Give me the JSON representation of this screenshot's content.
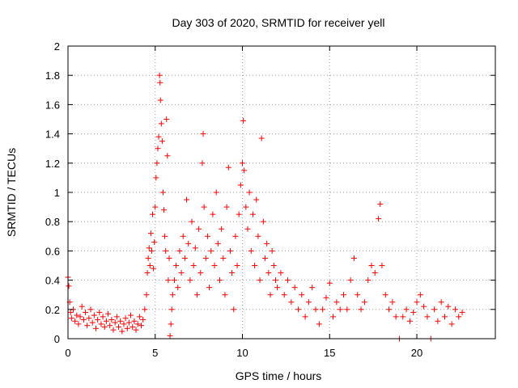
{
  "chart_data": {
    "type": "scatter",
    "title": "Day 303 of 2020, SRMTID for receiver yell",
    "xlabel": "GPS time / hours",
    "ylabel": "SRMTID / TECUs",
    "xlim": [
      0,
      24.5
    ],
    "ylim": [
      0,
      2
    ],
    "xticks": [
      0,
      5,
      10,
      15,
      20
    ],
    "yticks": [
      0,
      0.2,
      0.4,
      0.6,
      0.8,
      1,
      1.2,
      1.4,
      1.6,
      1.8,
      2
    ],
    "xtick_labels": [
      "0",
      "5",
      "10",
      "15",
      "20"
    ],
    "ytick_labels": [
      "0",
      "0.2",
      "0.4",
      "0.6",
      "0.8",
      "1",
      "1.2",
      "1.4",
      "1.6",
      "1.8",
      "2"
    ],
    "grid": true,
    "marker": "+",
    "color": "#ff0000",
    "series": [
      {
        "name": "SRMTID",
        "points": [
          [
            0.0,
            0.42
          ],
          [
            0.05,
            0.36
          ],
          [
            0.1,
            0.25
          ],
          [
            0.15,
            0.18
          ],
          [
            0.2,
            0.14
          ],
          [
            0.3,
            0.2
          ],
          [
            0.4,
            0.12
          ],
          [
            0.5,
            0.16
          ],
          [
            0.6,
            0.1
          ],
          [
            0.7,
            0.15
          ],
          [
            0.8,
            0.22
          ],
          [
            0.9,
            0.13
          ],
          [
            1.0,
            0.18
          ],
          [
            1.1,
            0.09
          ],
          [
            1.2,
            0.14
          ],
          [
            1.3,
            0.2
          ],
          [
            1.4,
            0.11
          ],
          [
            1.5,
            0.16
          ],
          [
            1.6,
            0.07
          ],
          [
            1.7,
            0.13
          ],
          [
            1.8,
            0.18
          ],
          [
            1.9,
            0.1
          ],
          [
            2.0,
            0.15
          ],
          [
            2.1,
            0.08
          ],
          [
            2.2,
            0.12
          ],
          [
            2.3,
            0.17
          ],
          [
            2.4,
            0.09
          ],
          [
            2.5,
            0.13
          ],
          [
            2.6,
            0.06
          ],
          [
            2.7,
            0.11
          ],
          [
            2.8,
            0.15
          ],
          [
            2.9,
            0.08
          ],
          [
            3.0,
            0.12
          ],
          [
            3.1,
            0.05
          ],
          [
            3.2,
            0.1
          ],
          [
            3.3,
            0.14
          ],
          [
            3.4,
            0.07
          ],
          [
            3.5,
            0.11
          ],
          [
            3.6,
            0.16
          ],
          [
            3.7,
            0.08
          ],
          [
            3.8,
            0.12
          ],
          [
            3.9,
            0.06
          ],
          [
            4.0,
            0.1
          ],
          [
            4.1,
            0.15
          ],
          [
            4.2,
            0.09
          ],
          [
            4.3,
            0.13
          ],
          [
            4.4,
            0.2
          ],
          [
            4.5,
            0.3
          ],
          [
            4.55,
            0.45
          ],
          [
            4.6,
            0.55
          ],
          [
            4.65,
            0.62
          ],
          [
            4.7,
            0.5
          ],
          [
            4.75,
            0.72
          ],
          [
            4.8,
            0.6
          ],
          [
            4.85,
            0.85
          ],
          [
            4.9,
            0.48
          ],
          [
            4.95,
            0.66
          ],
          [
            5.0,
            0.9
          ],
          [
            5.05,
            1.1
          ],
          [
            5.1,
            1.2
          ],
          [
            5.15,
            1.3
          ],
          [
            5.2,
            1.38
          ],
          [
            5.25,
            1.8
          ],
          [
            5.28,
            1.75
          ],
          [
            5.3,
            1.63
          ],
          [
            5.35,
            1.47
          ],
          [
            5.4,
            1.35
          ],
          [
            5.45,
            1.0
          ],
          [
            5.5,
            0.88
          ],
          [
            5.55,
            0.7
          ],
          [
            5.6,
            0.6
          ],
          [
            5.65,
            1.5
          ],
          [
            5.7,
            1.25
          ],
          [
            5.75,
            0.4
          ],
          [
            5.8,
            0.55
          ],
          [
            5.85,
            0.02
          ],
          [
            5.9,
            0.1
          ],
          [
            5.95,
            0.2
          ],
          [
            6.0,
            0.3
          ],
          [
            6.1,
            0.4
          ],
          [
            6.2,
            0.5
          ],
          [
            6.3,
            0.35
          ],
          [
            6.4,
            0.6
          ],
          [
            6.5,
            0.45
          ],
          [
            6.6,
            0.7
          ],
          [
            6.7,
            0.55
          ],
          [
            6.8,
            0.95
          ],
          [
            6.9,
            0.65
          ],
          [
            7.0,
            0.4
          ],
          [
            7.1,
            0.8
          ],
          [
            7.2,
            0.5
          ],
          [
            7.3,
            0.62
          ],
          [
            7.4,
            0.3
          ],
          [
            7.5,
            0.75
          ],
          [
            7.6,
            0.45
          ],
          [
            7.7,
            1.2
          ],
          [
            7.75,
            1.4
          ],
          [
            7.8,
            0.9
          ],
          [
            7.9,
            0.55
          ],
          [
            8.0,
            0.7
          ],
          [
            8.1,
            0.35
          ],
          [
            8.2,
            0.6
          ],
          [
            8.3,
            0.85
          ],
          [
            8.4,
            0.5
          ],
          [
            8.5,
            1.0
          ],
          [
            8.6,
            0.65
          ],
          [
            8.7,
            0.4
          ],
          [
            8.8,
            0.75
          ],
          [
            8.9,
            0.55
          ],
          [
            9.0,
            0.3
          ],
          [
            9.1,
            0.9
          ],
          [
            9.2,
            1.17
          ],
          [
            9.3,
            0.6
          ],
          [
            9.4,
            0.45
          ],
          [
            9.5,
            0.2
          ],
          [
            9.6,
            0.7
          ],
          [
            9.7,
            0.5
          ],
          [
            9.8,
            0.85
          ],
          [
            9.9,
            1.05
          ],
          [
            10.0,
            1.2
          ],
          [
            10.05,
            1.49
          ],
          [
            10.1,
            1.15
          ],
          [
            10.2,
            0.9
          ],
          [
            10.3,
            0.75
          ],
          [
            10.4,
            1.0
          ],
          [
            10.5,
            0.6
          ],
          [
            10.6,
            0.85
          ],
          [
            10.7,
            0.5
          ],
          [
            10.8,
            0.95
          ],
          [
            10.9,
            0.7
          ],
          [
            11.0,
            0.4
          ],
          [
            11.1,
            1.37
          ],
          [
            11.2,
            0.8
          ],
          [
            11.3,
            0.55
          ],
          [
            11.4,
            0.65
          ],
          [
            11.5,
            0.45
          ],
          [
            11.6,
            0.3
          ],
          [
            11.7,
            0.6
          ],
          [
            11.8,
            0.5
          ],
          [
            11.9,
            0.4
          ],
          [
            12.0,
            0.35
          ],
          [
            12.2,
            0.45
          ],
          [
            12.4,
            0.3
          ],
          [
            12.6,
            0.4
          ],
          [
            12.8,
            0.25
          ],
          [
            13.0,
            0.35
          ],
          [
            13.2,
            0.2
          ],
          [
            13.4,
            0.3
          ],
          [
            13.6,
            0.15
          ],
          [
            13.8,
            0.25
          ],
          [
            14.0,
            0.35
          ],
          [
            14.2,
            0.2
          ],
          [
            14.4,
            0.1
          ],
          [
            14.6,
            0.2
          ],
          [
            14.8,
            0.28
          ],
          [
            15.0,
            0.38
          ],
          [
            15.2,
            0.15
          ],
          [
            15.4,
            0.25
          ],
          [
            15.6,
            0.2
          ],
          [
            15.8,
            0.3
          ],
          [
            16.0,
            0.2
          ],
          [
            16.2,
            0.4
          ],
          [
            16.4,
            0.55
          ],
          [
            16.6,
            0.3
          ],
          [
            16.8,
            0.2
          ],
          [
            17.0,
            0.25
          ],
          [
            17.2,
            0.4
          ],
          [
            17.4,
            0.5
          ],
          [
            17.6,
            0.45
          ],
          [
            17.8,
            0.82
          ],
          [
            17.9,
            0.92
          ],
          [
            18.0,
            0.5
          ],
          [
            18.2,
            0.3
          ],
          [
            18.4,
            0.2
          ],
          [
            18.6,
            0.25
          ],
          [
            18.8,
            0.15
          ],
          [
            19.0,
            0.0
          ],
          [
            19.2,
            0.15
          ],
          [
            19.4,
            0.2
          ],
          [
            19.6,
            0.12
          ],
          [
            19.8,
            0.18
          ],
          [
            20.0,
            0.25
          ],
          [
            20.2,
            0.3
          ],
          [
            20.4,
            0.22
          ],
          [
            20.6,
            0.15
          ],
          [
            20.8,
            0.0
          ],
          [
            21.0,
            0.2
          ],
          [
            21.2,
            0.12
          ],
          [
            21.4,
            0.25
          ],
          [
            21.6,
            0.15
          ],
          [
            21.8,
            0.22
          ],
          [
            22.0,
            0.1
          ],
          [
            22.2,
            0.2
          ],
          [
            22.4,
            0.15
          ],
          [
            22.6,
            0.18
          ]
        ]
      }
    ]
  }
}
